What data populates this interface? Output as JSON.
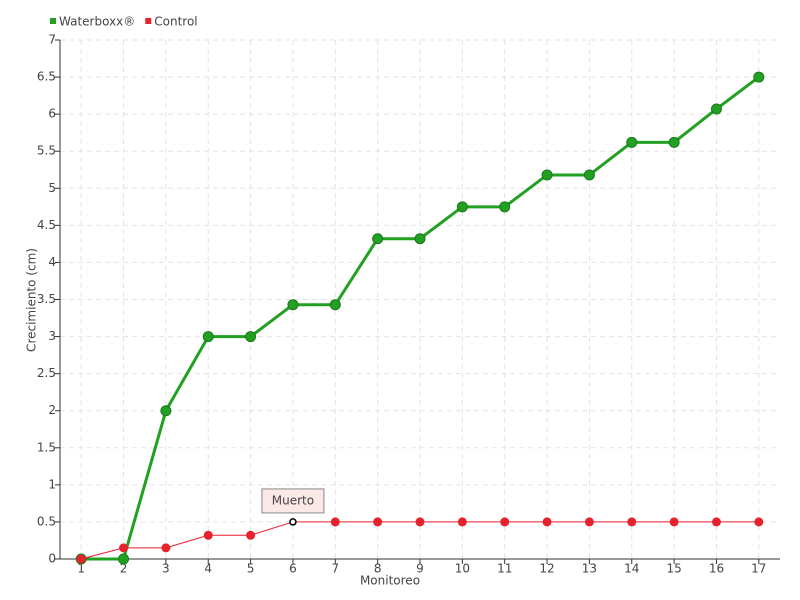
{
  "chart_data": {
    "type": "line",
    "xlabel": "Monitoreo",
    "ylabel": "Crecimiento (cm)",
    "categories": [
      "1",
      "2",
      "3",
      "4",
      "5",
      "6",
      "7",
      "8",
      "9",
      "10",
      "11",
      "12",
      "13",
      "14",
      "15",
      "16",
      "17"
    ],
    "series": [
      {
        "name": "Waterboxx®",
        "color": "#22a022",
        "values": [
          0,
          0,
          2,
          3,
          3,
          3.43,
          3.43,
          4.32,
          4.32,
          4.75,
          4.75,
          5.18,
          5.18,
          5.62,
          5.62,
          6.07,
          6.5
        ]
      },
      {
        "name": "Control",
        "color": "#e8212f",
        "values": [
          0,
          0.15,
          0.15,
          0.32,
          0.32,
          0.5,
          0.5,
          0.5,
          0.5,
          0.5,
          0.5,
          0.5,
          0.5,
          0.5,
          0.5,
          0.5,
          0.5
        ]
      }
    ],
    "annotation": "Muerto",
    "ylim": [
      0,
      7
    ],
    "yticks": [
      0,
      0.5,
      1,
      1.5,
      2,
      2.5,
      3,
      3.5,
      4,
      4.5,
      5,
      5.5,
      6,
      6.5,
      7
    ],
    "grid": true
  }
}
